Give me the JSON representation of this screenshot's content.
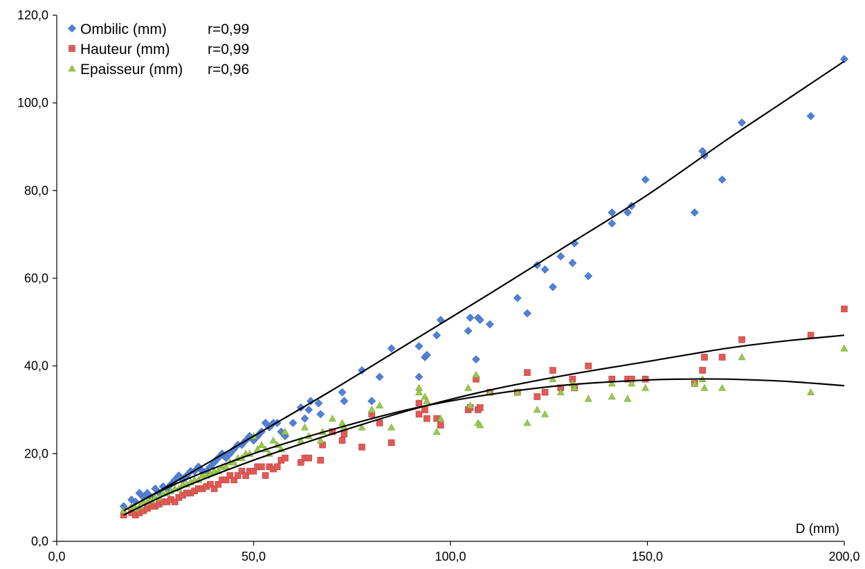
{
  "chart_data": {
    "type": "scatter",
    "title": "",
    "xlabel": "D (mm)",
    "ylabel": "",
    "xlim": [
      0,
      200
    ],
    "ylim": [
      0,
      120
    ],
    "x_ticks": [
      "0,0",
      "50,0",
      "100,0",
      "150,0",
      "200,0"
    ],
    "y_ticks": [
      "0,0",
      "20,0",
      "40,0",
      "60,0",
      "80,0",
      "100,0",
      "120,0"
    ],
    "grid": false,
    "legend_position": "top-left",
    "series": [
      {
        "name": "Ombilic (mm)",
        "r_label": "r=0,99",
        "marker": "diamond",
        "color": "#4f81d9",
        "points": [
          [
            17,
            8
          ],
          [
            19,
            9.5
          ],
          [
            20,
            9
          ],
          [
            21,
            11
          ],
          [
            22,
            10
          ],
          [
            23,
            11
          ],
          [
            24,
            10
          ],
          [
            25,
            12
          ],
          [
            26,
            11
          ],
          [
            27,
            12.5
          ],
          [
            28,
            12
          ],
          [
            29,
            13
          ],
          [
            30,
            14
          ],
          [
            31,
            15
          ],
          [
            32,
            14
          ],
          [
            33,
            15
          ],
          [
            34,
            16
          ],
          [
            35,
            16
          ],
          [
            36,
            17
          ],
          [
            37,
            16
          ],
          [
            38,
            16
          ],
          [
            39,
            17
          ],
          [
            40,
            18
          ],
          [
            41,
            19
          ],
          [
            42,
            20
          ],
          [
            43,
            19
          ],
          [
            44,
            20
          ],
          [
            45,
            21
          ],
          [
            46,
            22
          ],
          [
            47,
            22
          ],
          [
            48,
            23
          ],
          [
            49,
            24
          ],
          [
            50,
            23
          ],
          [
            51,
            24
          ],
          [
            52,
            25
          ],
          [
            53,
            27
          ],
          [
            54,
            26
          ],
          [
            55,
            27
          ],
          [
            56,
            27
          ],
          [
            57,
            25
          ],
          [
            58,
            24
          ],
          [
            60,
            27
          ],
          [
            62,
            30.5
          ],
          [
            63,
            28
          ],
          [
            64,
            30
          ],
          [
            64.5,
            32
          ],
          [
            66.5,
            31.5
          ],
          [
            67,
            29
          ],
          [
            72.5,
            34
          ],
          [
            73,
            32
          ],
          [
            77.5,
            39
          ],
          [
            80,
            32
          ],
          [
            82,
            37.5
          ],
          [
            85,
            44
          ],
          [
            92,
            44.5
          ],
          [
            92,
            37.5
          ],
          [
            93.5,
            42
          ],
          [
            94,
            42.5
          ],
          [
            96.5,
            47
          ],
          [
            97.5,
            50.5
          ],
          [
            104.5,
            48
          ],
          [
            105,
            51
          ],
          [
            106.5,
            41.5
          ],
          [
            107,
            51
          ],
          [
            107.5,
            50.5
          ],
          [
            110,
            49.5
          ],
          [
            117,
            55.5
          ],
          [
            119.5,
            52
          ],
          [
            122,
            63
          ],
          [
            124,
            62
          ],
          [
            126,
            58
          ],
          [
            128,
            65
          ],
          [
            131,
            63.5
          ],
          [
            131.5,
            68
          ],
          [
            135,
            60.5
          ],
          [
            141,
            72.5
          ],
          [
            141,
            75
          ],
          [
            145,
            75
          ],
          [
            146,
            76.5
          ],
          [
            149.5,
            82.5
          ],
          [
            162,
            75
          ],
          [
            164,
            89
          ],
          [
            164.5,
            88
          ],
          [
            169,
            82.5
          ],
          [
            174,
            95.5
          ],
          [
            191.5,
            97
          ],
          [
            200,
            110
          ]
        ]
      },
      {
        "name": "Hauteur (mm)",
        "r_label": "r=0,99",
        "marker": "square",
        "color": "#e05a56",
        "points": [
          [
            17,
            6
          ],
          [
            19,
            6.5
          ],
          [
            20,
            6
          ],
          [
            21,
            6.5
          ],
          [
            22,
            7
          ],
          [
            23,
            7.5
          ],
          [
            24,
            8
          ],
          [
            25,
            8
          ],
          [
            26,
            8.5
          ],
          [
            27,
            9
          ],
          [
            28,
            9
          ],
          [
            29,
            9.5
          ],
          [
            30,
            9
          ],
          [
            31,
            10
          ],
          [
            32,
            10.5
          ],
          [
            33,
            11
          ],
          [
            34,
            11
          ],
          [
            35,
            11.5
          ],
          [
            36,
            12
          ],
          [
            37,
            12
          ],
          [
            38,
            12.5
          ],
          [
            39,
            13
          ],
          [
            40,
            12
          ],
          [
            41,
            13
          ],
          [
            42,
            14
          ],
          [
            43,
            14
          ],
          [
            44,
            15
          ],
          [
            45,
            14
          ],
          [
            46,
            15
          ],
          [
            47,
            16
          ],
          [
            48,
            15
          ],
          [
            49,
            16
          ],
          [
            50,
            16
          ],
          [
            51,
            17
          ],
          [
            52,
            17
          ],
          [
            53,
            15
          ],
          [
            54,
            17
          ],
          [
            55,
            16.5
          ],
          [
            56,
            17
          ],
          [
            57,
            18.5
          ],
          [
            58,
            19
          ],
          [
            62,
            18
          ],
          [
            63,
            19
          ],
          [
            64,
            19
          ],
          [
            67,
            18.5
          ],
          [
            67.5,
            22
          ],
          [
            70,
            25
          ],
          [
            72.5,
            23
          ],
          [
            73,
            24.5
          ],
          [
            77.5,
            21.5
          ],
          [
            80,
            29
          ],
          [
            82,
            27
          ],
          [
            85,
            22.5
          ],
          [
            92,
            29
          ],
          [
            92,
            31.5
          ],
          [
            93.5,
            30
          ],
          [
            94,
            28
          ],
          [
            96.5,
            28
          ],
          [
            97.5,
            26.5
          ],
          [
            104.5,
            30
          ],
          [
            105,
            30.5
          ],
          [
            106.5,
            37
          ],
          [
            107,
            30
          ],
          [
            107.5,
            30.5
          ],
          [
            110,
            34
          ],
          [
            117,
            34
          ],
          [
            119.5,
            38.5
          ],
          [
            122,
            33
          ],
          [
            124,
            34
          ],
          [
            126,
            39
          ],
          [
            128,
            35
          ],
          [
            131,
            37
          ],
          [
            131.5,
            35
          ],
          [
            135,
            40
          ],
          [
            141,
            37
          ],
          [
            145,
            37
          ],
          [
            146,
            37
          ],
          [
            149.5,
            37
          ],
          [
            162,
            36
          ],
          [
            164,
            39
          ],
          [
            164.5,
            42
          ],
          [
            169,
            42
          ],
          [
            174,
            46
          ],
          [
            191.5,
            47
          ],
          [
            200,
            53
          ]
        ]
      },
      {
        "name": "Epaisseur (mm)",
        "r_label": "r=0,96",
        "marker": "triangle",
        "color": "#9bc84a",
        "points": [
          [
            17,
            7
          ],
          [
            19,
            8
          ],
          [
            20,
            7.5
          ],
          [
            21,
            8
          ],
          [
            22,
            9
          ],
          [
            23,
            9
          ],
          [
            24,
            9.5
          ],
          [
            25,
            10
          ],
          [
            26,
            10
          ],
          [
            27,
            11
          ],
          [
            28,
            11
          ],
          [
            29,
            11.5
          ],
          [
            30,
            12
          ],
          [
            31,
            12
          ],
          [
            32,
            13
          ],
          [
            33,
            13
          ],
          [
            34,
            13.5
          ],
          [
            35,
            14
          ],
          [
            36,
            14
          ],
          [
            37,
            15
          ],
          [
            38,
            15
          ],
          [
            39,
            15.5
          ],
          [
            40,
            16
          ],
          [
            41,
            16
          ],
          [
            42,
            17
          ],
          [
            43,
            17
          ],
          [
            44,
            18
          ],
          [
            45,
            18
          ],
          [
            46,
            19
          ],
          [
            47,
            19
          ],
          [
            48,
            20
          ],
          [
            49,
            20
          ],
          [
            50,
            24
          ],
          [
            51,
            21
          ],
          [
            52,
            22
          ],
          [
            53,
            21
          ],
          [
            54,
            20
          ],
          [
            55,
            23
          ],
          [
            56,
            22
          ],
          [
            57,
            21
          ],
          [
            58,
            25
          ],
          [
            62,
            23
          ],
          [
            63,
            26
          ],
          [
            64,
            24
          ],
          [
            67,
            23
          ],
          [
            67.5,
            25
          ],
          [
            70,
            28
          ],
          [
            72.5,
            27
          ],
          [
            73,
            26
          ],
          [
            77.5,
            26
          ],
          [
            80,
            30
          ],
          [
            82,
            31
          ],
          [
            85,
            26
          ],
          [
            92,
            34
          ],
          [
            92,
            35
          ],
          [
            93.5,
            33
          ],
          [
            94,
            32
          ],
          [
            96.5,
            25
          ],
          [
            97.5,
            28
          ],
          [
            104.5,
            35
          ],
          [
            105,
            31
          ],
          [
            106.5,
            38
          ],
          [
            107,
            27
          ],
          [
            107.5,
            26.5
          ],
          [
            110,
            34
          ],
          [
            117,
            34
          ],
          [
            119.5,
            27
          ],
          [
            122,
            30
          ],
          [
            124,
            29
          ],
          [
            126,
            37
          ],
          [
            128,
            34
          ],
          [
            131,
            36
          ],
          [
            131.5,
            35
          ],
          [
            135,
            32.5
          ],
          [
            141,
            33
          ],
          [
            141,
            36
          ],
          [
            145,
            32.5
          ],
          [
            146,
            36
          ],
          [
            149.5,
            35
          ],
          [
            162,
            36
          ],
          [
            164,
            37
          ],
          [
            164.5,
            35
          ],
          [
            169,
            35
          ],
          [
            174,
            42
          ],
          [
            191.5,
            34
          ],
          [
            200,
            44
          ]
        ]
      }
    ],
    "trendlines": [
      {
        "series": "Ombilic (mm)",
        "x": [
          17,
          30,
          50,
          70,
          90,
          110,
          130,
          150,
          170,
          185,
          200
        ],
        "y": [
          7,
          13.5,
          24,
          34.5,
          45.5,
          56.5,
          67.7,
          79,
          91.5,
          100.5,
          109.5
        ]
      },
      {
        "series": "Hauteur (mm)",
        "x": [
          17,
          30,
          50,
          70,
          90,
          110,
          130,
          150,
          170,
          185,
          200
        ],
        "y": [
          6,
          11.5,
          18.5,
          24.5,
          30,
          34.5,
          38,
          41,
          44,
          45.7,
          47
        ]
      },
      {
        "series": "Epaisseur (mm)",
        "x": [
          17,
          30,
          50,
          70,
          90,
          110,
          130,
          150,
          160,
          170,
          185,
          200
        ],
        "y": [
          7,
          13,
          20,
          25.5,
          30.2,
          33.5,
          35.7,
          36.8,
          37,
          37,
          36.5,
          35.5
        ]
      }
    ]
  }
}
